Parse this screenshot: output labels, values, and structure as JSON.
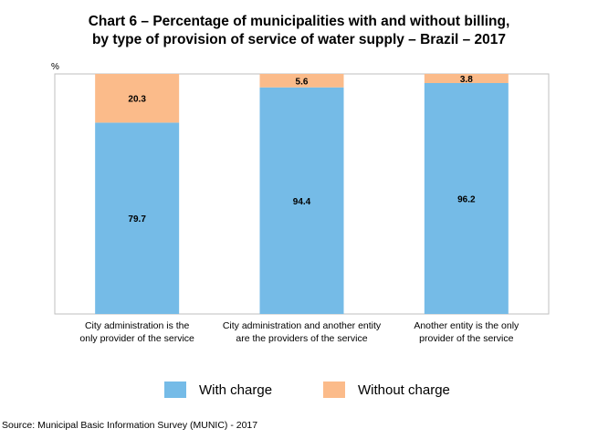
{
  "chart_data": {
    "type": "bar",
    "stacked": true,
    "title_lines": [
      "Chart 6 – Percentage of municipalities with and without billing,",
      "by type of provision of service of water supply – Brazil – 2017"
    ],
    "ylabel": "%",
    "ylim": [
      0,
      100
    ],
    "grid": false,
    "legend_position": "bottom",
    "categories": [
      [
        "City administration is the",
        "only provider of the service"
      ],
      [
        "City administration and another entity",
        "are the providers of the service"
      ],
      [
        "Another entity is the only",
        "provider of the service"
      ]
    ],
    "series": [
      {
        "name": "With charge",
        "color": "#75BBE7",
        "values": [
          79.7,
          94.4,
          96.2
        ],
        "labels": [
          "79.7",
          "94.4",
          "96.2"
        ]
      },
      {
        "name": "Without charge",
        "color": "#FBBB8A",
        "values": [
          20.3,
          5.6,
          3.8
        ],
        "labels": [
          "20.3",
          "5.6",
          "3.8"
        ]
      }
    ]
  },
  "source": "Source: Municipal Basic Information Survey (MUNIC) - 2017"
}
